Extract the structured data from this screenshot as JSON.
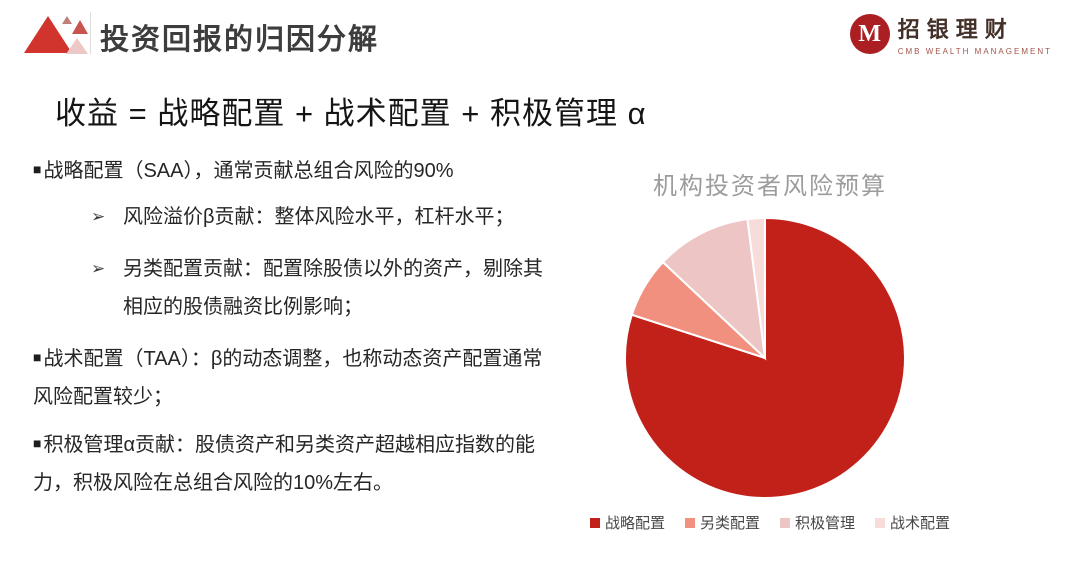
{
  "header": {
    "title": "投资回报的归因分解",
    "brand": {
      "monogram": "M",
      "name": "招银理财",
      "subtitle": "CMB WEALTH MANAGEMENT"
    }
  },
  "formula": "收益 = 战略配置 + 战术配置 + 积极管理 α",
  "bullets": [
    {
      "marker": "■",
      "level": 1,
      "text": "战略配置（SAA），通常贡献总组合风险的90%"
    },
    {
      "marker": "➢",
      "level": 2,
      "text": "风险溢价β贡献：整体风险水平，杠杆水平；"
    },
    {
      "marker": "➢",
      "level": 2,
      "text": "另类配置贡献：配置除股债以外的资产，剔除其相应的股债融资比例影响；"
    },
    {
      "marker": "■",
      "level": 1,
      "text": "战术配置（TAA）：β的动态调整，也称动态资产配置通常风险配置较少；"
    },
    {
      "marker": "■",
      "level": 1,
      "text": "积极管理α贡献：股债资产和另类资产超越相应指数的能力，积极风险在总组合风险的10%左右。"
    }
  ],
  "chart_data": {
    "type": "pie",
    "title": "机构投资者风险预算",
    "categories": [
      "战略配置",
      "另类配置",
      "积极管理",
      "战术配置"
    ],
    "values": [
      80,
      7,
      11,
      2
    ],
    "colors": [
      "#c2211a",
      "#f2907f",
      "#eec5c5",
      "#f8dcda"
    ],
    "start_angle_deg": 0,
    "direction": "clockwise",
    "legend_position": "bottom",
    "slice_border_color": "#ffffff"
  },
  "colors": {
    "accent_red": "#d0342c",
    "title_gray": "#3d3d3d",
    "chart_title_gray": "#9c9c9c"
  }
}
